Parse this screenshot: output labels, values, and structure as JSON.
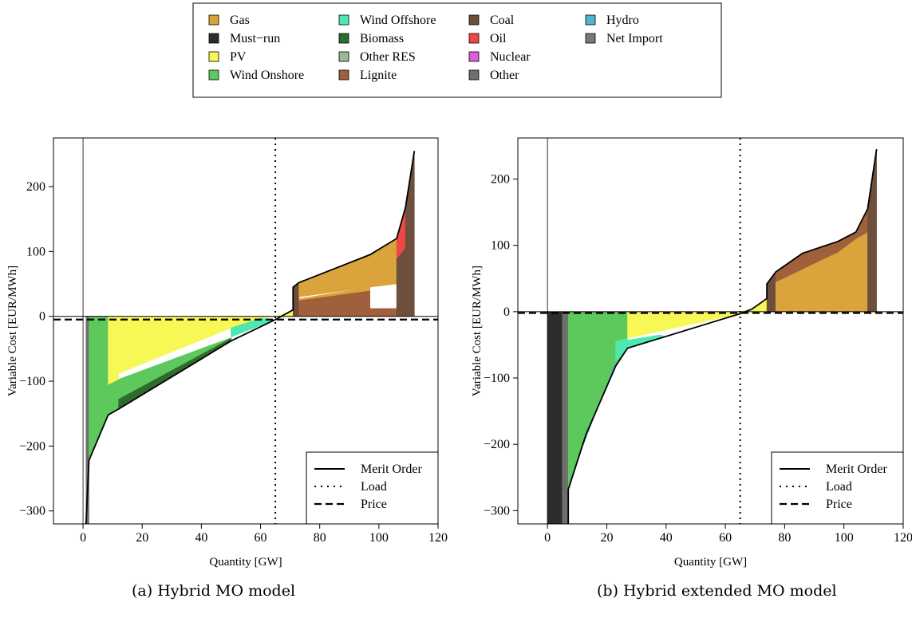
{
  "legend": {
    "items": [
      {
        "label": "Gas",
        "color": "#dba33c"
      },
      {
        "label": "Must−run",
        "color": "#2d2d2d"
      },
      {
        "label": "PV",
        "color": "#f7f756"
      },
      {
        "label": "Wind Onshore",
        "color": "#5dc85c"
      },
      {
        "label": "Wind Offshore",
        "color": "#4de8b0"
      },
      {
        "label": "Biomass",
        "color": "#2e6b2e"
      },
      {
        "label": "Other RES",
        "color": "#96b996"
      },
      {
        "label": "Lignite",
        "color": "#a0603c"
      },
      {
        "label": "Coal",
        "color": "#6e4e3c"
      },
      {
        "label": "Oil",
        "color": "#f04646"
      },
      {
        "label": "Nuclear",
        "color": "#da5edc"
      },
      {
        "label": "Other",
        "color": "#6e6e6e"
      },
      {
        "label": "Hydro",
        "color": "#4cb6d0"
      },
      {
        "label": "Net Import",
        "color": "#787878"
      }
    ]
  },
  "captions": {
    "a": "(a) Hybrid MO model",
    "b": "(b) Hybrid extended MO model"
  },
  "chart_data": [
    {
      "type": "area",
      "id": "a",
      "xlabel": "Quantity [GW]",
      "ylabel": "Variable Cost [EUR/MWh]",
      "xlim": [
        -10,
        120
      ],
      "ylim": [
        -320,
        275
      ],
      "xticks": [
        0,
        20,
        40,
        60,
        80,
        100,
        120
      ],
      "yticks": [
        -300,
        -200,
        -100,
        0,
        100,
        200
      ],
      "load": 65,
      "price": -5,
      "merit_order": [
        [
          1,
          -320
        ],
        [
          2,
          -222
        ],
        [
          8.5,
          -152
        ],
        [
          12,
          -143
        ],
        [
          50,
          -38
        ],
        [
          65,
          -5
        ],
        [
          71,
          10
        ],
        [
          71,
          45
        ],
        [
          73,
          52
        ],
        [
          97,
          95
        ],
        [
          106,
          120
        ],
        [
          109,
          168
        ],
        [
          112,
          255
        ]
      ],
      "areas": [
        {
          "tech": "Other",
          "color": "#6e6e6e",
          "points": [
            [
              1,
              -320
            ],
            [
              2,
              -320
            ],
            [
              2,
              0
            ],
            [
              1,
              0
            ]
          ]
        },
        {
          "tech": "Wind Onshore",
          "color": "#5dc85c",
          "points": [
            [
              2,
              0
            ],
            [
              8.5,
              0
            ],
            [
              8.5,
              -100
            ],
            [
              12,
              -97
            ],
            [
              50,
              -33
            ],
            [
              50,
              -38
            ],
            [
              12,
              -143
            ],
            [
              8.5,
              -152
            ],
            [
              2,
              -222
            ]
          ]
        },
        {
          "tech": "Biomass",
          "color": "#2e6b2e",
          "points": [
            [
              12,
              -143
            ],
            [
              12,
              -128
            ],
            [
              50,
              -34
            ],
            [
              50,
              -38
            ]
          ]
        },
        {
          "tech": "PV",
          "color": "#f7f756",
          "points": [
            [
              8.5,
              0
            ],
            [
              65,
              0
            ],
            [
              60,
              -3
            ],
            [
              50,
              -18
            ],
            [
              12,
              -88
            ],
            [
              12,
              -97
            ],
            [
              8.5,
              -105
            ]
          ]
        },
        {
          "tech": "Wind Offshore",
          "color": "#4de8b0",
          "points": [
            [
              50,
              -18
            ],
            [
              60,
              -3
            ],
            [
              65,
              -5
            ],
            [
              50,
              -32
            ]
          ]
        },
        {
          "tech": "PV",
          "color": "#f7f756",
          "points": [
            [
              65,
              0
            ],
            [
              71,
              0
            ],
            [
              71,
              10
            ],
            [
              69,
              5
            ]
          ]
        },
        {
          "tech": "Coal",
          "color": "#6e4e3c",
          "points": [
            [
              71,
              10
            ],
            [
              71,
              45
            ],
            [
              73,
              52
            ],
            [
              73,
              0
            ],
            [
              71,
              0
            ]
          ]
        },
        {
          "tech": "Lignite",
          "color": "#a0603c",
          "points": [
            [
              73,
              0
            ],
            [
              97,
              0
            ],
            [
              97,
              40
            ],
            [
              73,
              25
            ]
          ]
        },
        {
          "tech": "Gas",
          "color": "#dba33c",
          "points": [
            [
              73,
              25
            ],
            [
              97,
              40
            ],
            [
              97,
              45
            ],
            [
              73,
              27
            ]
          ]
        },
        {
          "tech": "Gas",
          "color": "#dba33c",
          "points": [
            [
              73,
              30
            ],
            [
              97,
              45
            ],
            [
              106,
              50
            ],
            [
              106,
              120
            ],
            [
              97,
              95
            ],
            [
              73,
              52
            ]
          ]
        },
        {
          "tech": "Lignite",
          "color": "#a0603c",
          "points": [
            [
              97,
              0
            ],
            [
              106,
              0
            ],
            [
              106,
              12
            ],
            [
              97,
              12
            ]
          ]
        },
        {
          "tech": "Oil",
          "color": "#f04646",
          "points": [
            [
              106,
              88
            ],
            [
              109,
              105
            ],
            [
              109,
              168
            ],
            [
              106,
              120
            ]
          ]
        },
        {
          "tech": "Coal",
          "color": "#6e4e3c",
          "points": [
            [
              106,
              0
            ],
            [
              112,
              0
            ],
            [
              112,
              255
            ],
            [
              109,
              168
            ],
            [
              109,
              105
            ],
            [
              106,
              88
            ]
          ]
        }
      ],
      "legend_entries": [
        "Merit Order",
        "Load",
        "Price"
      ]
    },
    {
      "type": "area",
      "id": "b",
      "xlabel": "Quantity [GW]",
      "ylabel": "Variable Cost [EUR/MWh]",
      "xlim": [
        -10,
        120
      ],
      "ylim": [
        -320,
        262
      ],
      "xticks": [
        0,
        20,
        40,
        60,
        80,
        100,
        120
      ],
      "yticks": [
        -300,
        -200,
        -100,
        0,
        100,
        200
      ],
      "load": 65,
      "price": -2,
      "merit_order": [
        [
          7,
          -320
        ],
        [
          7,
          -268
        ],
        [
          13,
          -185
        ],
        [
          23,
          -82
        ],
        [
          27,
          -55
        ],
        [
          65,
          -3
        ],
        [
          69,
          4
        ],
        [
          74,
          20
        ],
        [
          74,
          42
        ],
        [
          77,
          60
        ],
        [
          86,
          88
        ],
        [
          98,
          106
        ],
        [
          104,
          120
        ],
        [
          108,
          155
        ],
        [
          111,
          245
        ]
      ],
      "areas": [
        {
          "tech": "Must−run",
          "color": "#2d2d2d",
          "points": [
            [
              0,
              -320
            ],
            [
              5,
              -320
            ],
            [
              5,
              0
            ],
            [
              0,
              0
            ]
          ]
        },
        {
          "tech": "Other",
          "color": "#6e6e6e",
          "points": [
            [
              5,
              -320
            ],
            [
              7,
              -320
            ],
            [
              7,
              0
            ],
            [
              5,
              0
            ]
          ]
        },
        {
          "tech": "Wind Onshore",
          "color": "#5dc85c",
          "points": [
            [
              7,
              -268
            ],
            [
              7,
              0
            ],
            [
              27,
              0
            ],
            [
              27,
              -55
            ],
            [
              23,
              -82
            ],
            [
              13,
              -185
            ]
          ]
        },
        {
          "tech": "Hydro",
          "color": "#4cb6d0",
          "points": [
            [
              7,
              -268
            ],
            [
              13,
              -185
            ],
            [
              23,
              -82
            ],
            [
              23,
              -75
            ],
            [
              8,
              -248
            ]
          ]
        },
        {
          "tech": "Wind Offshore",
          "color": "#4de8b0",
          "points": [
            [
              23,
              -75
            ],
            [
              23,
              -45
            ],
            [
              27,
              -40
            ],
            [
              27,
              -55
            ]
          ]
        },
        {
          "tech": "PV",
          "color": "#f7f756",
          "points": [
            [
              27,
              0
            ],
            [
              65,
              0
            ],
            [
              65,
              -3
            ],
            [
              27,
              -40
            ]
          ]
        },
        {
          "tech": "Wind Offshore",
          "color": "#4de8b0",
          "points": [
            [
              27,
              -43
            ],
            [
              27,
              -55
            ],
            [
              40,
              -38
            ],
            [
              38,
              -35
            ]
          ]
        },
        {
          "tech": "PV",
          "color": "#f7f756",
          "points": [
            [
              65,
              0
            ],
            [
              74,
              0
            ],
            [
              74,
              20
            ],
            [
              69,
              4
            ]
          ]
        },
        {
          "tech": "Coal",
          "color": "#6e4e3c",
          "points": [
            [
              74,
              0
            ],
            [
              77,
              0
            ],
            [
              77,
              60
            ],
            [
              74,
              42
            ]
          ]
        },
        {
          "tech": "Gas",
          "color": "#dba33c",
          "points": [
            [
              77,
              0
            ],
            [
              98,
              0
            ],
            [
              98,
              90
            ],
            [
              77,
              45
            ]
          ]
        },
        {
          "tech": "Lignite",
          "color": "#a0603c",
          "points": [
            [
              77,
              45
            ],
            [
              98,
              90
            ],
            [
              98,
              106
            ],
            [
              86,
              88
            ],
            [
              77,
              60
            ]
          ]
        },
        {
          "tech": "Gas",
          "color": "#dba33c",
          "points": [
            [
              98,
              0
            ],
            [
              108,
              0
            ],
            [
              108,
              120
            ],
            [
              104,
              110
            ],
            [
              98,
              90
            ]
          ]
        },
        {
          "tech": "Lignite",
          "color": "#a0603c",
          "points": [
            [
              98,
              90
            ],
            [
              104,
              110
            ],
            [
              108,
              120
            ],
            [
              108,
              155
            ],
            [
              104,
              120
            ],
            [
              98,
              106
            ]
          ]
        },
        {
          "tech": "Coal",
          "color": "#6e4e3c",
          "points": [
            [
              108,
              0
            ],
            [
              111,
              0
            ],
            [
              111,
              245
            ],
            [
              108,
              155
            ]
          ]
        }
      ],
      "legend_entries": [
        "Merit Order",
        "Load",
        "Price"
      ]
    }
  ]
}
